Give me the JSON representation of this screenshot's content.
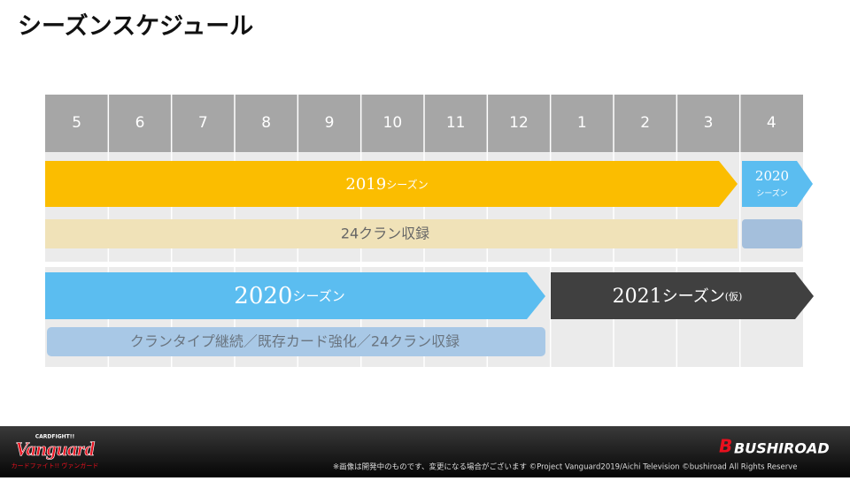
{
  "header": {
    "title": "シーズンスケジュール"
  },
  "months": [
    "5",
    "6",
    "7",
    "8",
    "9",
    "10",
    "11",
    "12",
    "1",
    "2",
    "3",
    "4"
  ],
  "rows": [
    {
      "year": "2019",
      "suffix": "シーズン"
    },
    {
      "year": "2020",
      "suffix": "シーズン"
    },
    {
      "text": "24クラン収録"
    },
    {
      "year": "2020",
      "suffix": "シーズン"
    },
    {
      "year": "2021",
      "suffix": "シーズン",
      "note": "(仮)"
    },
    {
      "text": "クランタイプ継続／既存カード強化／24クラン収録"
    }
  ],
  "footer": {
    "logo_top": "CARDFIGHT!!",
    "logo": "Vanguard",
    "logo_sub": "カードファイト!! ヴァンガード",
    "brand": "BUSHIROAD",
    "notice": "※画像は開発中のものです、変更になる場合がございます ©Project Vanguard2019/Aichi Television ©bushiroad All Rights Reserve"
  }
}
